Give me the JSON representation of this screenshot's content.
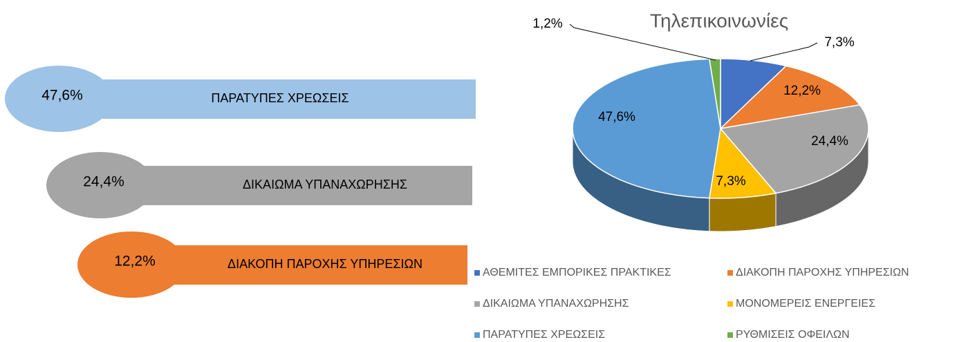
{
  "chart_data": {
    "type": "pie",
    "title": "Τηλεπικοινωνίες",
    "categories": [
      "ΑΘΕΜΙΤΕΣ ΕΜΠΟΡΙΚΕΣ ΠΡΑΚΤΙΚΕΣ",
      "ΔΙΑΚΟΠΗ ΠΑΡΟΧΗΣ ΥΠΗΡΕΣΙΩΝ",
      "ΔΙΚΑΙΩΜΑ ΥΠΑΝΑΧΩΡΗΣΗΣ",
      "ΜΟΝΟΜΕΡΕΙΣ ΕΝΕΡΓΕΙΕΣ",
      "ΠΑΡΑΤΥΠΕΣ ΧΡΕΩΣΕΙΣ",
      "ΡΥΘΜΙΣΕΙΣ ΟΦΕΙΛΩΝ"
    ],
    "values": [
      7.3,
      12.2,
      24.4,
      7.3,
      47.6,
      1.2
    ],
    "value_labels": [
      "7,3%",
      "12,2%",
      "24,4%",
      "7,3%",
      "47,6%",
      "1,2%"
    ],
    "colors": [
      "#4472c4",
      "#ed7d31",
      "#a5a5a5",
      "#ffc000",
      "#5b9bd5",
      "#70ad47"
    ],
    "legend": "bottom"
  },
  "highlights": [
    {
      "value": 47.6,
      "label": "47,6%",
      "name": "ΠΑΡΑΤΥΠΕΣ ΧΡΕΩΣΕΙΣ",
      "color": "#9dc3e6"
    },
    {
      "value": 24.4,
      "label": "24,4%",
      "name": "ΔΙΚΑΙΩΜΑ ΥΠΑΝΑΧΩΡΗΣΗΣ",
      "color": "#a5a5a5"
    },
    {
      "value": 12.2,
      "label": "12,2%",
      "name": "ΔΙΑΚΟΠΗ ΠΑΡΟΧΗΣ ΥΠΗΡΕΣΙΩΝ",
      "color": "#ed7d31"
    }
  ]
}
